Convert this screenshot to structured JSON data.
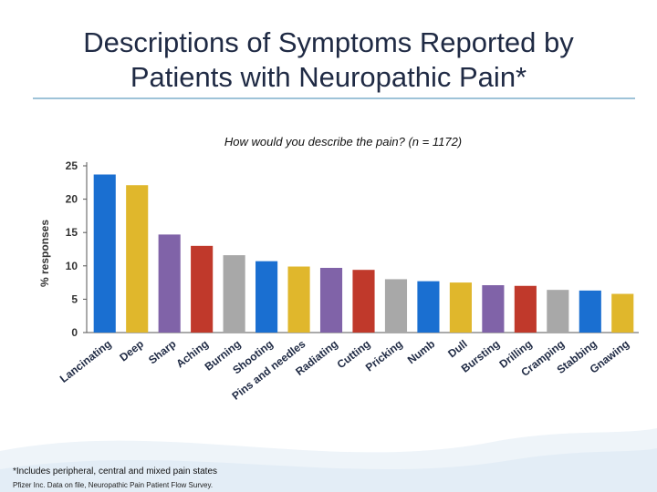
{
  "slide": {
    "title_line1": "Descriptions of Symptoms Reported by",
    "title_line2": "Patients with Neuropathic Pain*",
    "footnote": "*Includes peripheral, central and mixed pain states",
    "source": "Pfizer Inc. Data on file, Neuropathic Pain Patient Flow Survey."
  },
  "chart_data": {
    "type": "bar",
    "title": "How would you describe the pain? (n = 1172)",
    "xlabel": "",
    "ylabel": "% responses",
    "ylim": [
      0,
      25
    ],
    "yticks": [
      0,
      5,
      10,
      15,
      20,
      25
    ],
    "grid": false,
    "categories": [
      "Lancinating",
      "Deep",
      "Sharp",
      "Aching",
      "Burning",
      "Shooting",
      "Pins and needles",
      "Radiating",
      "Cutting",
      "Pricking",
      "Numb",
      "Dull",
      "Bursting",
      "Drilling",
      "Cramping",
      "Stabbing",
      "Gnawing"
    ],
    "values": [
      23.7,
      22.1,
      14.7,
      13.0,
      11.6,
      10.7,
      9.9,
      9.7,
      9.4,
      8.0,
      7.7,
      7.5,
      7.1,
      7.0,
      6.4,
      6.3,
      5.8
    ],
    "colors": [
      "#1a6fd1",
      "#e0b72c",
      "#8063a8",
      "#c0392b",
      "#a8a8a8",
      "#1a6fd1",
      "#e0b72c",
      "#8063a8",
      "#c0392b",
      "#a8a8a8",
      "#1a6fd1",
      "#e0b72c",
      "#8063a8",
      "#c0392b",
      "#a8a8a8",
      "#1a6fd1",
      "#e0b72c"
    ]
  }
}
